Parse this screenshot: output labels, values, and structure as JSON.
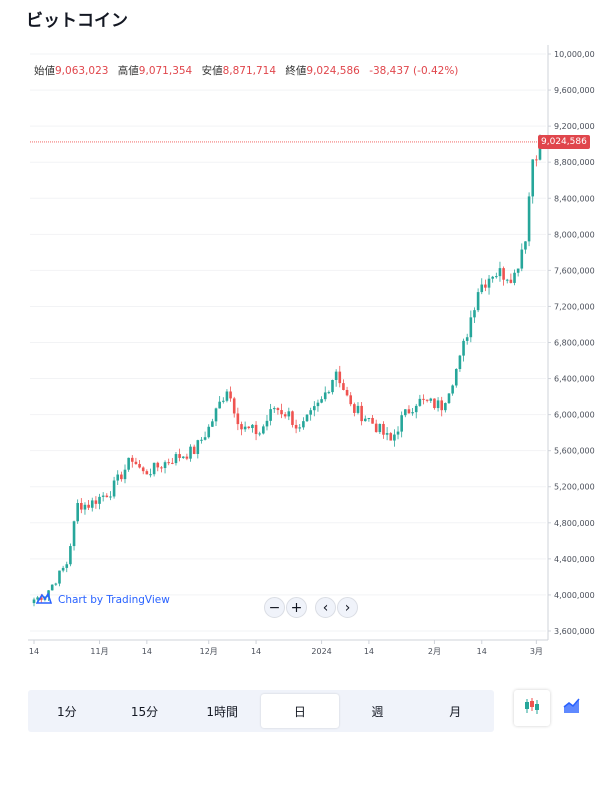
{
  "page": {
    "title": "ビットコイン"
  },
  "ohlc": {
    "open_label": "始値",
    "open": "9,063,023",
    "high_label": "高値",
    "high": "9,071,354",
    "low_label": "安値",
    "low": "8,871,714",
    "close_label": "終値",
    "close": "9,024,586",
    "change": "-38,437 (-0.42%)"
  },
  "price_tag": "9,024,586",
  "attribution": "Chart by TradingView",
  "zoom": {
    "minus": "−",
    "plus": "+",
    "prev": "‹",
    "next": "›"
  },
  "timeframes": [
    {
      "label": "1分",
      "active": false
    },
    {
      "label": "15分",
      "active": false
    },
    {
      "label": "1時間",
      "active": false
    },
    {
      "label": "日",
      "active": true
    },
    {
      "label": "週",
      "active": false
    },
    {
      "label": "月",
      "active": false
    }
  ],
  "chart_types": [
    {
      "icon": "candlestick-icon",
      "active": true
    },
    {
      "icon": "area-chart-icon",
      "active": false
    }
  ],
  "colors": {
    "up": "#26a69a",
    "down": "#ef5350",
    "price_line": "#ef5350",
    "accent": "#2962ff"
  },
  "chart_data": {
    "type": "candlestick",
    "ylim": [
      3500000,
      10100000
    ],
    "y_ticks": [
      "10,000,000",
      "9,600,000",
      "9,200,000",
      "8,800,000",
      "8,400,000",
      "8,000,000",
      "7,600,000",
      "7,200,000",
      "6,800,000",
      "6,400,000",
      "6,000,000",
      "5,600,000",
      "5,200,000",
      "4,800,000",
      "4,400,000",
      "4,000,000",
      "3,600,000"
    ],
    "x_ticks": [
      {
        "label": "14",
        "idx": 0
      },
      {
        "label": "11月",
        "idx": 18
      },
      {
        "label": "14",
        "idx": 31
      },
      {
        "label": "12月",
        "idx": 48
      },
      {
        "label": "14",
        "idx": 61
      },
      {
        "label": "2024",
        "idx": 79
      },
      {
        "label": "14",
        "idx": 92
      },
      {
        "label": "2月",
        "idx": 110
      },
      {
        "label": "14",
        "idx": 123
      },
      {
        "label": "3月",
        "idx": 138
      }
    ],
    "last_price": 9024586,
    "candle_count": 140,
    "trend_points": [
      [
        0,
        3950000
      ],
      [
        3,
        4000000
      ],
      [
        6,
        4170000
      ],
      [
        9,
        4350000
      ],
      [
        12,
        5000000
      ],
      [
        15,
        5000000
      ],
      [
        18,
        5080000
      ],
      [
        21,
        5150000
      ],
      [
        27,
        5520000
      ],
      [
        30,
        5350000
      ],
      [
        33,
        5400000
      ],
      [
        38,
        5510000
      ],
      [
        44,
        5600000
      ],
      [
        48,
        5850000
      ],
      [
        53,
        6300000
      ],
      [
        57,
        5850000
      ],
      [
        62,
        5800000
      ],
      [
        66,
        6080000
      ],
      [
        70,
        6000000
      ],
      [
        73,
        5820000
      ],
      [
        79,
        6150000
      ],
      [
        83,
        6500000
      ],
      [
        87,
        6080000
      ],
      [
        92,
        5950000
      ],
      [
        98,
        5700000
      ],
      [
        101,
        5950000
      ],
      [
        105,
        6150000
      ],
      [
        112,
        6100000
      ],
      [
        117,
        6600000
      ],
      [
        122,
        7400000
      ],
      [
        126,
        7580000
      ],
      [
        132,
        7550000
      ],
      [
        135,
        8000000
      ],
      [
        137,
        8850000
      ],
      [
        139,
        9024586
      ]
    ]
  }
}
